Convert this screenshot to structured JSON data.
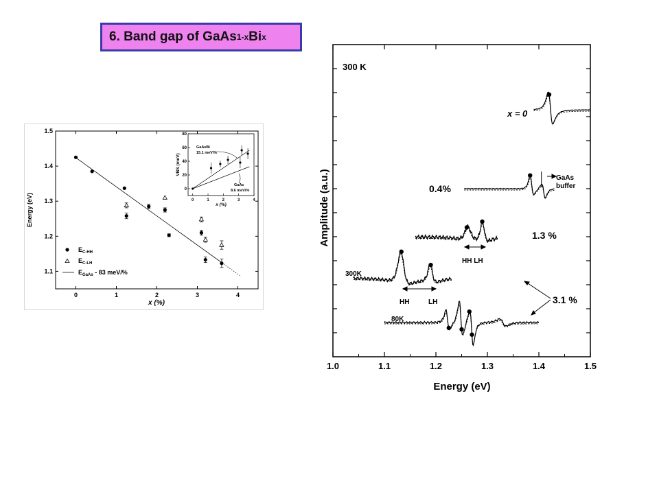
{
  "slide": {
    "title_main": "6. Band gap of GaAs",
    "title_sub1": "1-x",
    "title_bi": "Bi",
    "title_sub2": "x"
  },
  "chart_data": [
    {
      "type": "scatter",
      "title": "",
      "xlabel": "x (%)",
      "ylabel": "Energy (eV)",
      "xlim": [
        -0.5,
        4.5
      ],
      "ylim": [
        1.05,
        1.5
      ],
      "xticks": [
        "0",
        "1",
        "2",
        "3",
        "4"
      ],
      "yticks": [
        "1.1",
        "1.2",
        "1.3",
        "1.4",
        "1.5"
      ],
      "series": [
        {
          "name": "E",
          "name_sub": "C-HH",
          "marker": "filled-circle",
          "x": [
            0,
            0.4,
            1.2,
            1.25,
            1.8,
            2.2,
            2.3,
            3.1,
            3.2,
            3.6
          ],
          "y": [
            1.425,
            1.385,
            1.337,
            1.258,
            1.285,
            1.275,
            1.203,
            1.21,
            1.133,
            1.123
          ],
          "err": [
            0,
            0,
            0,
            0.008,
            0.006,
            0.006,
            0.004,
            0.007,
            0.008,
            0.012
          ]
        },
        {
          "name": "E",
          "name_sub": "C-LH",
          "marker": "open-triangle",
          "x": [
            1.25,
            2.2,
            3.1,
            3.2,
            3.6
          ],
          "y": [
            1.288,
            1.31,
            1.248,
            1.19,
            1.175
          ],
          "err": [
            0.007,
            0,
            0.007,
            0.007,
            0.012
          ]
        },
        {
          "name": "E",
          "name_sub": "GaAs",
          "name_suffix": " - 83 meV/%",
          "type": "line",
          "x": [
            0,
            3.6
          ],
          "y": [
            1.424,
            1.125
          ],
          "dotted_x": [
            3.6,
            4.05
          ],
          "dotted_y": [
            1.125,
            1.088
          ]
        }
      ],
      "legend": "lower-left",
      "inset": {
        "type": "scatter",
        "xlabel": "x (%)",
        "ylabel": "VBS (meV)",
        "xlim": [
          -0.3,
          4
        ],
        "ylim": [
          -10,
          80
        ],
        "xticks": [
          "0",
          "1",
          "2",
          "3",
          "4"
        ],
        "yticks": [
          "0",
          "20",
          "40",
          "60",
          "80"
        ],
        "points": {
          "x": [
            0,
            1.2,
            1.8,
            2.3,
            3.1,
            3.2,
            3.6
          ],
          "y": [
            0,
            30,
            36,
            42,
            38,
            56,
            51
          ],
          "err": [
            0,
            8,
            5,
            6,
            8,
            7,
            8
          ]
        },
        "lines": [
          {
            "label": "GaAsBi",
            "annotation": "15.1 meV/%",
            "x": [
              0,
              3.7
            ],
            "y": [
              0,
              56
            ]
          },
          {
            "label": "GaAs",
            "annotation": "8.6 meV/%",
            "x": [
              0,
              3.7
            ],
            "y": [
              0,
              32
            ]
          }
        ]
      }
    },
    {
      "type": "line",
      "title": "",
      "xlabel": "Energy (eV)",
      "ylabel": "Amplitude (a.u.)",
      "xlim": [
        1.0,
        1.5
      ],
      "xticks": [
        "1.0",
        "1.1",
        "1.2",
        "1.3",
        "1.4",
        "1.5"
      ],
      "labels": {
        "temp_top": "300 K",
        "x0": "x = 0",
        "gaas_buffer_1": "GaAs",
        "gaas_buffer_2": "buffer",
        "x04": "0.4%",
        "x13": "1.3 %",
        "hh_lh_mid": "HH LH",
        "temp_300": "300K",
        "hh_low": "HH",
        "lh_low": "LH",
        "x31": "3.1 %",
        "temp_80": "80K"
      },
      "spectra": [
        {
          "name": "x = 0",
          "marker_energies": [
            1.42
          ]
        },
        {
          "name": "0.4%",
          "marker_energies": [
            1.383
          ]
        },
        {
          "name": "1.3 %",
          "marker_energies": [
            1.26,
            1.29
          ]
        },
        {
          "name": "3.1 % (300K)",
          "marker_energies": [
            1.133,
            1.19
          ]
        },
        {
          "name": "3.1 % (80K)",
          "marker_energies": [
            1.225,
            1.25,
            1.265,
            1.27
          ]
        }
      ]
    }
  ]
}
